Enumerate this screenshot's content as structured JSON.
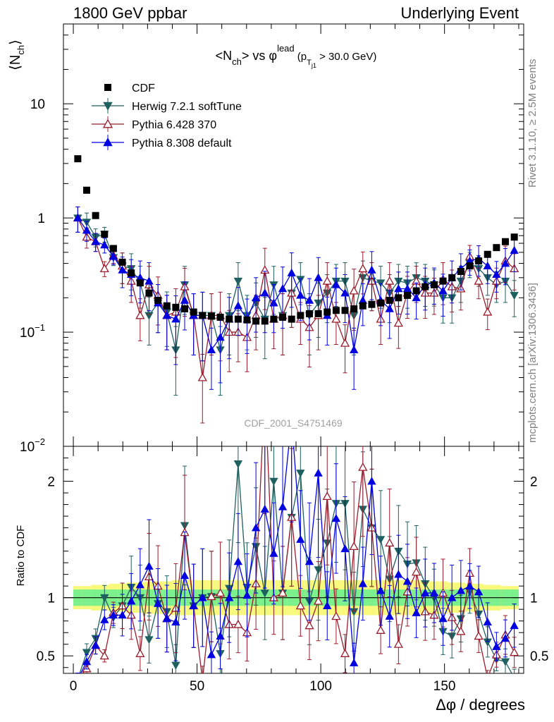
{
  "header": {
    "left": "1800 GeV ppbar",
    "right": "Underlying Event"
  },
  "side_labels": {
    "rivet": "Rivet 3.1.10, ≥ 2.5M events",
    "mcplots": "mcplots.cern.ch [arXiv:1306.3436]"
  },
  "watermark": "CDF_2001_S4751469",
  "colors": {
    "cdf": "#000000",
    "herwig": "#1f6060",
    "pythia6": "#9b1c2c",
    "pythia8": "#0000e0",
    "band_inner": "#7cf08c",
    "band_outer": "#f8f87c"
  },
  "chart_data": [
    {
      "type": "scatter",
      "panel": "main",
      "title_parts": {
        "a": "<N",
        "a_sub": "ch",
        "b": "> vs φ",
        "b_sup": "lead",
        "c": " (p",
        "c_sub": "T",
        "c_subsub": "j1",
        "d": " > 30.0 GeV)"
      },
      "ylabel": "⟨N",
      "ylabel_sub": "ch",
      "ylabel_end": "⟩",
      "yscale": "log",
      "ylim": [
        0.01,
        50
      ],
      "xlim": [
        -4,
        182
      ],
      "yticks": [
        {
          "v": 10,
          "label": "10"
        },
        {
          "v": 1,
          "label": "1"
        },
        {
          "v": 0.1,
          "label": "10",
          "sup": "−1"
        },
        {
          "v": 0.01,
          "label": "10",
          "sup": "−2"
        }
      ],
      "x": [
        1.8,
        5.4,
        9.0,
        12.6,
        16.2,
        19.8,
        23.4,
        27.0,
        30.6,
        34.2,
        37.8,
        41.4,
        45.0,
        48.6,
        52.2,
        55.8,
        59.4,
        63.0,
        66.6,
        70.2,
        73.8,
        77.4,
        81.0,
        84.6,
        88.2,
        91.8,
        95.4,
        99.0,
        102.6,
        106.2,
        109.8,
        113.4,
        117.0,
        120.6,
        124.2,
        127.8,
        131.4,
        135.0,
        138.6,
        142.2,
        145.8,
        149.4,
        153.0,
        156.6,
        160.2,
        163.8,
        167.4,
        171.0,
        174.6,
        178.2
      ],
      "series": [
        {
          "name": "CDF",
          "key": "cdf",
          "marker": "square",
          "values": [
            3.3,
            1.75,
            1.05,
            0.72,
            0.54,
            0.41,
            0.33,
            0.27,
            0.22,
            0.19,
            0.17,
            0.165,
            0.16,
            0.15,
            0.14,
            0.138,
            0.135,
            0.13,
            0.13,
            0.128,
            0.125,
            0.125,
            0.13,
            0.135,
            0.13,
            0.14,
            0.145,
            0.145,
            0.15,
            0.155,
            0.155,
            0.16,
            0.17,
            0.175,
            0.18,
            0.19,
            0.2,
            0.21,
            0.23,
            0.25,
            0.26,
            0.28,
            0.3,
            0.34,
            0.38,
            0.42,
            0.48,
            0.55,
            0.62,
            0.68
          ],
          "err": [
            0.05,
            0.04,
            0.03,
            0.03,
            0.03,
            0.03,
            0.03,
            0.02,
            0.02,
            0.02,
            0.02,
            0.02,
            0.02,
            0.02,
            0.02,
            0.02,
            0.02,
            0.02,
            0.02,
            0.02,
            0.02,
            0.02,
            0.02,
            0.02,
            0.02,
            0.02,
            0.02,
            0.02,
            0.02,
            0.02,
            0.02,
            0.02,
            0.02,
            0.02,
            0.02,
            0.02,
            0.02,
            0.02,
            0.02,
            0.02,
            0.03,
            0.03,
            0.03,
            0.03,
            0.03,
            0.03,
            0.03,
            0.04,
            0.04,
            0.04
          ],
          "ratio": [
            1,
            1,
            1,
            1,
            1,
            1,
            1,
            1,
            1,
            1,
            1,
            1,
            1,
            1,
            1,
            1,
            1,
            1,
            1,
            1,
            1,
            1,
            1,
            1,
            1,
            1,
            1,
            1,
            1,
            1,
            1,
            1,
            1,
            1,
            1,
            1,
            1,
            1,
            1,
            1,
            1,
            1,
            1,
            1,
            1,
            1,
            1,
            1,
            1,
            1
          ]
        },
        {
          "name": "Herwig 7.2.1 softTune",
          "key": "herwig",
          "marker": "tri-down-filled",
          "values": [
            1.0,
            0.92,
            0.68,
            0.72,
            0.45,
            0.38,
            0.36,
            0.27,
            0.14,
            0.18,
            0.15,
            0.07,
            0.26,
            0.14,
            0.14,
            0.14,
            0.07,
            0.14,
            0.28,
            0.14,
            0.18,
            0.13,
            0.26,
            0.14,
            0.22,
            0.29,
            0.14,
            0.18,
            0.22,
            0.28,
            0.28,
            0.14,
            0.3,
            0.28,
            0.27,
            0.22,
            0.28,
            0.27,
            0.3,
            0.28,
            0.26,
            0.2,
            0.2,
            0.28,
            0.4,
            0.36,
            0.3,
            0.26,
            0.28,
            0.21
          ],
          "err": [
            0.25,
            0.2,
            0.18,
            0.15,
            0.15,
            0.3,
            0.35,
            0.4,
            0.45,
            0.45,
            0.5,
            0.6,
            0.45,
            0.55,
            0.6,
            0.55,
            0.6,
            0.55,
            0.45,
            0.5,
            0.5,
            0.55,
            0.45,
            0.55,
            0.5,
            0.4,
            0.55,
            0.5,
            0.45,
            0.4,
            0.45,
            0.55,
            0.4,
            0.45,
            0.4,
            0.45,
            0.4,
            0.4,
            0.35,
            0.4,
            0.35,
            0.4,
            0.4,
            0.35,
            0.25,
            0.3,
            0.3,
            0.3,
            0.35,
            0.35
          ],
          "ratio": [
            0.3,
            0.53,
            0.65,
            1.0,
            0.83,
            0.93,
            1.09,
            1.0,
            0.64,
            0.95,
            0.88,
            0.42,
            1.62,
            0.93,
            1.0,
            1.01,
            0.52,
            1.08,
            2.15,
            1.09,
            1.44,
            1.04,
            2.0,
            1.04,
            1.69,
            2.07,
            0.97,
            1.24,
            1.47,
            1.81,
            1.81,
            0.88,
            1.76,
            1.6,
            1.5,
            1.16,
            1.4,
            1.29,
            1.3,
            1.12,
            1.0,
            0.71,
            0.67,
            0.82,
            1.05,
            0.86,
            0.62,
            0.47,
            0.45,
            0.31
          ]
        },
        {
          "name": "Pythia 6.428 370",
          "key": "pythia6",
          "marker": "tri-up-open",
          "values": [
            1.0,
            0.68,
            0.62,
            0.36,
            0.47,
            0.38,
            0.28,
            0.14,
            0.26,
            0.21,
            0.14,
            0.15,
            0.25,
            0.14,
            0.04,
            0.14,
            0.14,
            0.1,
            0.1,
            0.09,
            0.14,
            0.35,
            0.13,
            0.14,
            0.22,
            0.13,
            0.11,
            0.14,
            0.28,
            0.13,
            0.08,
            0.23,
            0.36,
            0.28,
            0.13,
            0.28,
            0.12,
            0.22,
            0.28,
            0.22,
            0.22,
            0.29,
            0.25,
            0.24,
            0.46,
            0.28,
            0.15,
            0.28,
            0.42,
            0.36
          ],
          "err": [
            0.25,
            0.2,
            0.18,
            0.15,
            0.15,
            0.3,
            0.35,
            0.4,
            0.45,
            0.45,
            0.5,
            0.6,
            0.45,
            0.55,
            0.6,
            0.55,
            0.6,
            0.55,
            0.45,
            0.5,
            0.5,
            0.55,
            0.45,
            0.55,
            0.5,
            0.4,
            0.55,
            0.5,
            0.45,
            0.4,
            0.45,
            0.55,
            0.4,
            0.45,
            0.4,
            0.45,
            0.4,
            0.4,
            0.35,
            0.4,
            0.35,
            0.4,
            0.4,
            0.35,
            0.25,
            0.3,
            0.3,
            0.3,
            0.35,
            0.35
          ],
          "ratio": [
            0.3,
            0.39,
            0.59,
            0.5,
            0.87,
            0.93,
            0.85,
            0.52,
            1.18,
            1.1,
            0.82,
            0.91,
            1.56,
            0.93,
            0.29,
            1.01,
            1.04,
            0.77,
            0.77,
            0.7,
            1.12,
            2.8,
            1.0,
            1.04,
            1.69,
            0.93,
            0.76,
            0.97,
            1.87,
            0.84,
            0.52,
            1.44,
            2.12,
            1.6,
            0.72,
            1.47,
            0.6,
            1.05,
            1.22,
            0.88,
            0.85,
            1.04,
            0.83,
            0.71,
            1.21,
            0.67,
            0.31,
            0.51,
            0.68,
            0.53
          ]
        },
        {
          "name": "Pythia 8.308 default",
          "key": "pythia8",
          "marker": "tri-up-filled",
          "values": [
            1.0,
            0.78,
            0.62,
            0.58,
            0.46,
            0.35,
            0.32,
            0.3,
            0.28,
            0.18,
            0.14,
            0.13,
            0.19,
            0.14,
            0.14,
            0.07,
            0.09,
            0.13,
            0.17,
            0.13,
            0.2,
            0.22,
            0.18,
            0.24,
            0.33,
            0.21,
            0.19,
            0.3,
            0.14,
            0.26,
            0.22,
            0.07,
            0.19,
            0.35,
            0.19,
            0.16,
            0.24,
            0.24,
            0.2,
            0.26,
            0.27,
            0.23,
            0.3,
            0.36,
            0.42,
            0.44,
            0.38,
            0.32,
            0.4,
            0.52
          ],
          "err": [
            0.25,
            0.2,
            0.18,
            0.15,
            0.15,
            0.3,
            0.35,
            0.4,
            0.45,
            0.45,
            0.5,
            0.6,
            0.45,
            0.55,
            0.6,
            0.55,
            0.6,
            0.55,
            0.45,
            0.5,
            0.5,
            0.55,
            0.45,
            0.55,
            0.5,
            0.4,
            0.55,
            0.5,
            0.45,
            0.4,
            0.45,
            0.55,
            0.4,
            0.45,
            0.4,
            0.45,
            0.4,
            0.4,
            0.35,
            0.4,
            0.35,
            0.4,
            0.4,
            0.35,
            0.25,
            0.3,
            0.3,
            0.3,
            0.35,
            0.35
          ],
          "ratio": [
            0.3,
            0.45,
            0.59,
            0.81,
            0.85,
            0.85,
            0.97,
            1.11,
            1.27,
            0.95,
            0.82,
            0.79,
            1.19,
            0.93,
            1.0,
            0.51,
            0.67,
            1.0,
            1.31,
            1.02,
            1.6,
            1.76,
            1.38,
            1.78,
            2.54,
            1.5,
            1.31,
            2.07,
            0.93,
            1.68,
            1.42,
            0.44,
            1.12,
            2.0,
            1.06,
            0.84,
            1.2,
            1.14,
            0.87,
            1.04,
            1.04,
            0.82,
            1.0,
            1.06,
            1.1,
            1.05,
            0.79,
            0.58,
            0.65,
            0.76
          ]
        }
      ]
    },
    {
      "type": "scatter",
      "panel": "ratio",
      "ylabel": "Ratio to CDF",
      "xlabel": "Δφ / degrees",
      "yscale": "linear",
      "ylim": [
        0.35,
        2.3
      ],
      "xlim": [
        -4,
        182
      ],
      "yticks": [
        {
          "v": 0.5,
          "label": "0.5"
        },
        {
          "v": 1,
          "label": "1"
        },
        {
          "v": 2,
          "label": "2"
        }
      ],
      "xticks": [
        {
          "v": 0,
          "label": "0"
        },
        {
          "v": 50,
          "label": "50"
        },
        {
          "v": 100,
          "label": "100"
        },
        {
          "v": 150,
          "label": "150"
        }
      ],
      "band_inner_halfwidth": [
        0.07,
        0.07,
        0.07,
        0.07,
        0.07,
        0.07,
        0.07,
        0.07,
        0.07,
        0.07,
        0.07,
        0.07,
        0.07,
        0.07,
        0.07,
        0.07,
        0.07,
        0.07,
        0.07,
        0.07,
        0.07,
        0.07,
        0.07,
        0.07,
        0.07,
        0.07,
        0.07,
        0.07,
        0.07,
        0.07,
        0.07,
        0.07,
        0.07,
        0.07,
        0.07,
        0.07,
        0.07,
        0.07,
        0.07,
        0.07,
        0.07,
        0.07,
        0.07,
        0.07,
        0.07,
        0.07,
        0.07,
        0.07,
        0.07,
        0.07
      ],
      "band_outer_halfwidth": [
        0.1,
        0.1,
        0.11,
        0.11,
        0.12,
        0.12,
        0.13,
        0.13,
        0.14,
        0.14,
        0.14,
        0.15,
        0.15,
        0.15,
        0.15,
        0.15,
        0.15,
        0.15,
        0.15,
        0.15,
        0.15,
        0.15,
        0.15,
        0.15,
        0.15,
        0.15,
        0.15,
        0.15,
        0.15,
        0.15,
        0.15,
        0.15,
        0.15,
        0.15,
        0.15,
        0.15,
        0.15,
        0.15,
        0.15,
        0.14,
        0.14,
        0.14,
        0.13,
        0.13,
        0.12,
        0.12,
        0.11,
        0.11,
        0.1,
        0.1
      ]
    }
  ]
}
